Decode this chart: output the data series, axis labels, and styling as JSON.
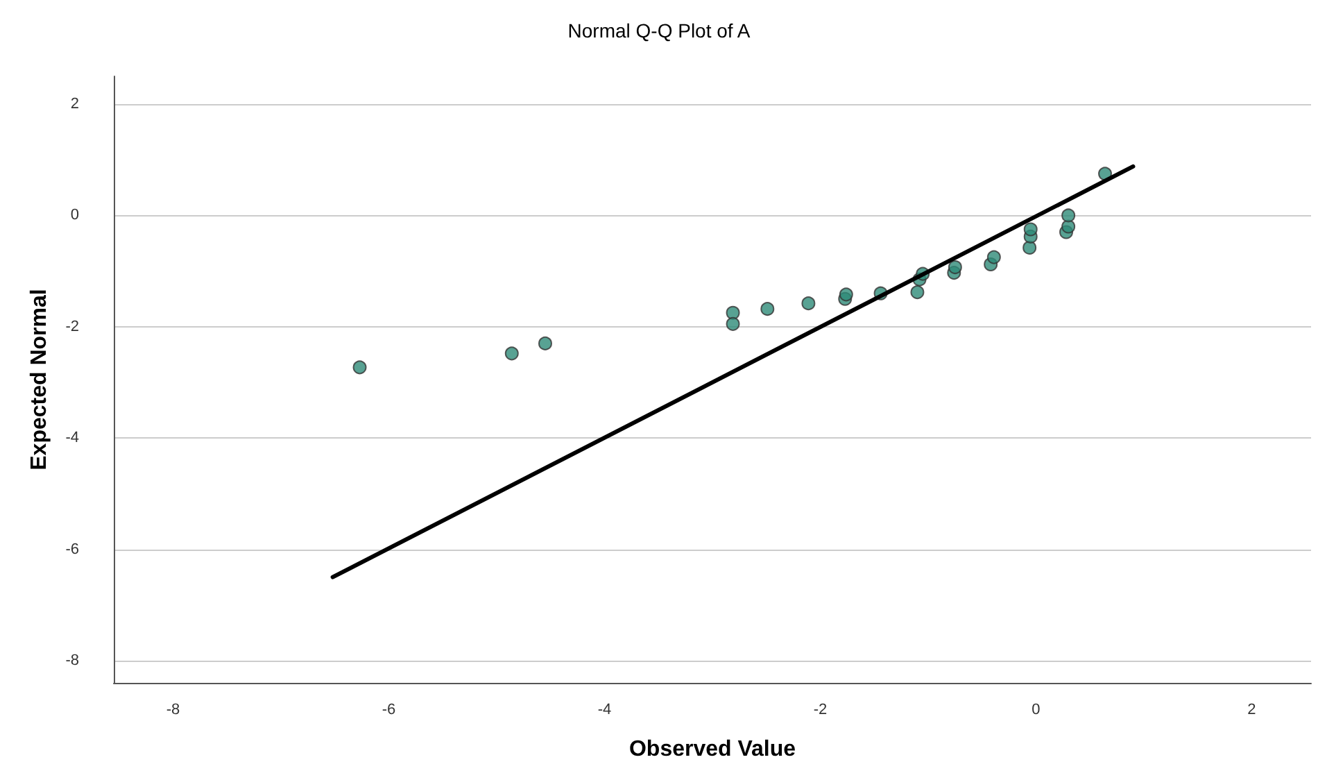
{
  "chart_data": {
    "type": "scatter",
    "title": "Normal Q-Q Plot of A",
    "xlabel": "Observed Value",
    "ylabel": "Expected Normal",
    "xlim": [
      -8.55,
      2.55
    ],
    "ylim": [
      -8.4,
      2.5
    ],
    "xticks": [
      -8,
      -6,
      -4,
      -2,
      0,
      2
    ],
    "yticks": [
      -8,
      -6,
      -4,
      -2,
      0,
      2
    ],
    "grid": "y",
    "marker": "circle",
    "series": [
      {
        "color": "#2e8b78",
        "x": [
          -6.27,
          -4.86,
          -4.55,
          -2.81,
          -2.81,
          -2.49,
          -2.11,
          -1.77,
          -1.76,
          -1.44,
          -1.1,
          -1.08,
          -1.05,
          -0.76,
          -0.75,
          -0.42,
          -0.39,
          -0.06,
          -0.05,
          -0.05,
          0.28,
          0.3,
          0.3,
          0.64
        ],
        "values": [
          -2.73,
          -2.48,
          -2.3,
          -1.75,
          -1.95,
          -1.68,
          -1.58,
          -1.5,
          -1.42,
          -1.4,
          -1.38,
          -1.15,
          -1.05,
          -1.03,
          -0.93,
          -0.88,
          -0.75,
          -0.58,
          -0.38,
          -0.25,
          -0.3,
          -0.2,
          0,
          0.75
        ]
      },
      {
        "type": "line",
        "color": "#000000",
        "line_style": "solid",
        "marker": "none",
        "x": [
          -6.52,
          0.9
        ],
        "values": [
          -6.5,
          0.88
        ]
      }
    ]
  }
}
